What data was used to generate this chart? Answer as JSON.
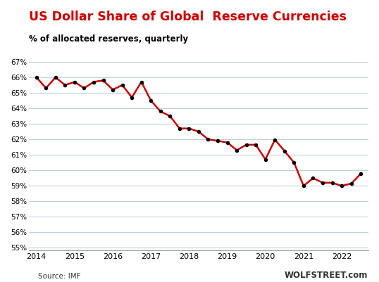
{
  "title": "US Dollar Share of Global  Reserve Currencies",
  "subtitle": "% of allocated reserves, quarterly",
  "source": "Source: IMF",
  "watermark": "WOLFSTREET.com",
  "line_color": "#CC0000",
  "marker_color": "#000000",
  "background_color": "#FFFFFF",
  "grid_color": "#B8D0E8",
  "title_color": "#CC0000",
  "subtitle_color": "#000000",
  "ylim_min": 55,
  "ylim_max": 67,
  "yticks": [
    55,
    56,
    57,
    58,
    59,
    60,
    61,
    62,
    63,
    64,
    65,
    66,
    67
  ],
  "x_labels": [
    "2014",
    "2015",
    "2016",
    "2017",
    "2018",
    "2019",
    "2020",
    "2021",
    "2022"
  ],
  "values": [
    66.0,
    65.3,
    66.0,
    65.5,
    65.7,
    65.3,
    65.7,
    65.8,
    65.2,
    65.5,
    64.7,
    65.7,
    64.5,
    63.8,
    63.5,
    62.7,
    62.7,
    62.5,
    62.0,
    61.9,
    61.8,
    61.3,
    61.65,
    61.65,
    60.7,
    61.98,
    61.25,
    60.5,
    59.0,
    59.5,
    59.2,
    59.2,
    59.0,
    59.15,
    59.78
  ]
}
